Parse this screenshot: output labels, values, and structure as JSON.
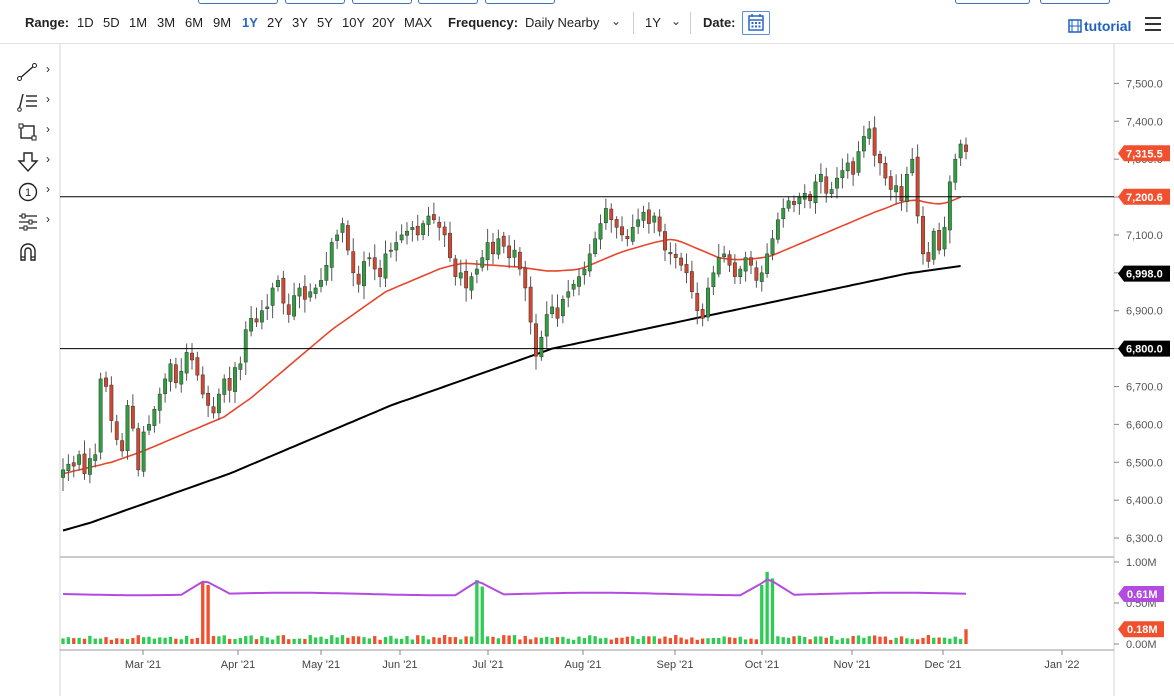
{
  "toolbar": {
    "range_label": "Range:",
    "ranges": [
      "1D",
      "5D",
      "1M",
      "3M",
      "6M",
      "9M",
      "1Y",
      "2Y",
      "3Y",
      "5Y",
      "10Y",
      "20Y",
      "MAX"
    ],
    "active_range": "1Y",
    "frequency_label": "Frequency:",
    "frequency_value": "Daily Nearby",
    "period_value": "1Y",
    "date_label": "Date:",
    "tutorial_label": "tutorial"
  },
  "tools": [
    {
      "name": "trend-line-icon"
    },
    {
      "name": "fibonacci-icon"
    },
    {
      "name": "rectangle-icon"
    },
    {
      "name": "arrow-down-icon"
    },
    {
      "name": "counter-icon",
      "text": "1"
    },
    {
      "name": "settings-sliders-icon"
    },
    {
      "name": "magnet-icon"
    }
  ],
  "chart_data": {
    "type": "candlestick",
    "x_ticks": [
      "Mar '21",
      "Apr '21",
      "May '21",
      "Jun '21",
      "Jul '21",
      "Aug '21",
      "Sep '21",
      "Oct '21",
      "Nov '21",
      "Dec '21",
      "Jan '22"
    ],
    "y_ticks": [
      "7,500.0",
      "7,400.0",
      "7,300.0",
      "7,200.0",
      "7,100.0",
      "7,000.0",
      "6,900.0",
      "6,800.0",
      "6,700.0",
      "6,600.0",
      "6,500.0",
      "6,400.0",
      "6,300.0"
    ],
    "ylim": [
      6250,
      7530
    ],
    "price_badges": [
      {
        "label": "7,315.5",
        "value": 7315.5,
        "color": "#f0502e"
      },
      {
        "label": "7,200.6",
        "value": 7200.6,
        "color": "#f0502e"
      },
      {
        "label": "6,998.0",
        "value": 6998.0,
        "color": "#000000"
      },
      {
        "label": "6,800.0",
        "value": 6800.0,
        "color": "#000000"
      }
    ],
    "horizontal_lines": [
      7200.6,
      6800.0
    ],
    "closes": [
      6480,
      6495,
      6490,
      6520,
      6470,
      6510,
      6520,
      6720,
      6700,
      6610,
      6560,
      6530,
      6650,
      6590,
      6480,
      6580,
      6600,
      6640,
      6680,
      6720,
      6760,
      6710,
      6740,
      6790,
      6770,
      6730,
      6680,
      6650,
      6630,
      6680,
      6720,
      6690,
      6750,
      6760,
      6850,
      6880,
      6870,
      6900,
      6910,
      6960,
      6980,
      6920,
      6890,
      6940,
      6960,
      6930,
      6950,
      6960,
      6980,
      7020,
      7080,
      7100,
      7130,
      7060,
      7000,
      6970,
      7030,
      7040,
      7010,
      6990,
      7050,
      7060,
      7080,
      7100,
      7110,
      7120,
      7100,
      7130,
      7150,
      7140,
      7120,
      7100,
      7040,
      6990,
      7000,
      6960,
      6990,
      7010,
      7040,
      7080,
      7050,
      7090,
      7070,
      7040,
      7060,
      7010,
      6960,
      6870,
      6780,
      6830,
      6890,
      6910,
      6880,
      6930,
      6950,
      6970,
      6990,
      7010,
      7050,
      7090,
      7130,
      7170,
      7140,
      7120,
      7100,
      7090,
      7120,
      7140,
      7160,
      7130,
      7150,
      7110,
      7060,
      7050,
      7040,
      7020,
      7000,
      6950,
      6900,
      6880,
      6960,
      7000,
      7040,
      7050,
      7020,
      6990,
      7010,
      7040,
      7020,
      6980,
      7000,
      7050,
      7090,
      7140,
      7170,
      7190,
      7180,
      7200,
      7210,
      7190,
      7240,
      7260,
      7210,
      7220,
      7250,
      7270,
      7290,
      7260,
      7320,
      7360,
      7380,
      7310,
      7290,
      7250,
      7220,
      7230,
      7190,
      7260,
      7300,
      7150,
      7050,
      7030,
      7110,
      7060,
      7120,
      7240,
      7300,
      7340,
      7320
    ],
    "ma_red": [
      6470,
      6473,
      6477,
      6480,
      6483,
      6487,
      6490,
      6493,
      6497,
      6500,
      6505,
      6510,
      6515,
      6520,
      6525,
      6530,
      6536,
      6542,
      6548,
      6554,
      6560,
      6566,
      6572,
      6578,
      6584,
      6590,
      6596,
      6602,
      6608,
      6614,
      6620,
      6630,
      6640,
      6650,
      6660,
      6670,
      6682,
      6694,
      6706,
      6718,
      6730,
      6742,
      6754,
      6766,
      6778,
      6790,
      6802,
      6814,
      6826,
      6838,
      6850,
      6860,
      6870,
      6880,
      6890,
      6900,
      6910,
      6920,
      6930,
      6940,
      6950,
      6956,
      6962,
      6968,
      6974,
      6980,
      6986,
      6992,
      6998,
      7004,
      7010,
      7014,
      7018,
      7021,
      7024,
      7025,
      7024,
      7023,
      7022,
      7021,
      7020,
      7019,
      7018,
      7017,
      7016,
      7015,
      7013,
      7011,
      7009,
      7007,
      7005,
      7005,
      7005,
      7006,
      7007,
      7008,
      7010,
      7014,
      7020,
      7026,
      7032,
      7038,
      7044,
      7050,
      7055,
      7060,
      7064,
      7068,
      7072,
      7076,
      7080,
      7083,
      7086,
      7088,
      7086,
      7082,
      7076,
      7070,
      7064,
      7058,
      7052,
      7046,
      7040,
      7038,
      7036,
      7035,
      7035,
      7036,
      7037,
      7038,
      7040,
      7042,
      7046,
      7052,
      7058,
      7064,
      7070,
      7076,
      7082,
      7088,
      7094,
      7100,
      7106,
      7112,
      7118,
      7124,
      7130,
      7136,
      7142,
      7148,
      7154,
      7160,
      7165,
      7170,
      7176,
      7182,
      7186,
      7190,
      7191,
      7192,
      7188,
      7185,
      7183,
      7182,
      7184,
      7188,
      7194,
      7200
    ],
    "ma_black": [
      6320,
      6324,
      6328,
      6332,
      6336,
      6340,
      6345,
      6350,
      6355,
      6360,
      6365,
      6370,
      6375,
      6380,
      6385,
      6390,
      6395,
      6400,
      6405,
      6410,
      6415,
      6420,
      6425,
      6430,
      6435,
      6440,
      6445,
      6450,
      6455,
      6460,
      6465,
      6470,
      6476,
      6482,
      6488,
      6494,
      6500,
      6506,
      6512,
      6518,
      6524,
      6530,
      6536,
      6542,
      6548,
      6554,
      6560,
      6566,
      6572,
      6578,
      6584,
      6590,
      6596,
      6602,
      6608,
      6614,
      6620,
      6626,
      6632,
      6638,
      6644,
      6650,
      6655,
      6660,
      6665,
      6670,
      6675,
      6680,
      6685,
      6690,
      6695,
      6700,
      6705,
      6710,
      6715,
      6720,
      6725,
      6730,
      6735,
      6740,
      6745,
      6750,
      6755,
      6760,
      6765,
      6770,
      6775,
      6780,
      6785,
      6790,
      6795,
      6800,
      6803,
      6806,
      6809,
      6812,
      6815,
      6818,
      6821,
      6824,
      6827,
      6830,
      6833,
      6836,
      6839,
      6842,
      6845,
      6848,
      6851,
      6854,
      6857,
      6860,
      6863,
      6866,
      6869,
      6872,
      6875,
      6878,
      6881,
      6884,
      6887,
      6890,
      6893,
      6896,
      6899,
      6902,
      6905,
      6908,
      6911,
      6914,
      6917,
      6920,
      6923,
      6926,
      6929,
      6932,
      6935,
      6938,
      6941,
      6944,
      6947,
      6950,
      6953,
      6956,
      6959,
      6962,
      6965,
      6968,
      6971,
      6974,
      6977,
      6980,
      6983,
      6986,
      6989,
      6992,
      6995,
      6998,
      7000,
      7002,
      7004,
      7006,
      7008,
      7010,
      7012,
      7014,
      7016,
      7018
    ],
    "volume": {
      "ticks": [
        "1.00M",
        "0.50M",
        "0.00M"
      ],
      "ylim": [
        0,
        1.0
      ],
      "avg_badge": "0.61M",
      "last_badge": "0.18M",
      "avg_level": 0.61,
      "last_value": 0.18,
      "spikes": [
        {
          "index": 26,
          "value": 0.75
        },
        {
          "index": 27,
          "value": 0.72
        },
        {
          "index": 77,
          "value": 0.78
        },
        {
          "index": 78,
          "value": 0.7
        },
        {
          "index": 130,
          "value": 0.72
        },
        {
          "index": 131,
          "value": 0.88
        },
        {
          "index": 132,
          "value": 0.8
        }
      ]
    }
  }
}
